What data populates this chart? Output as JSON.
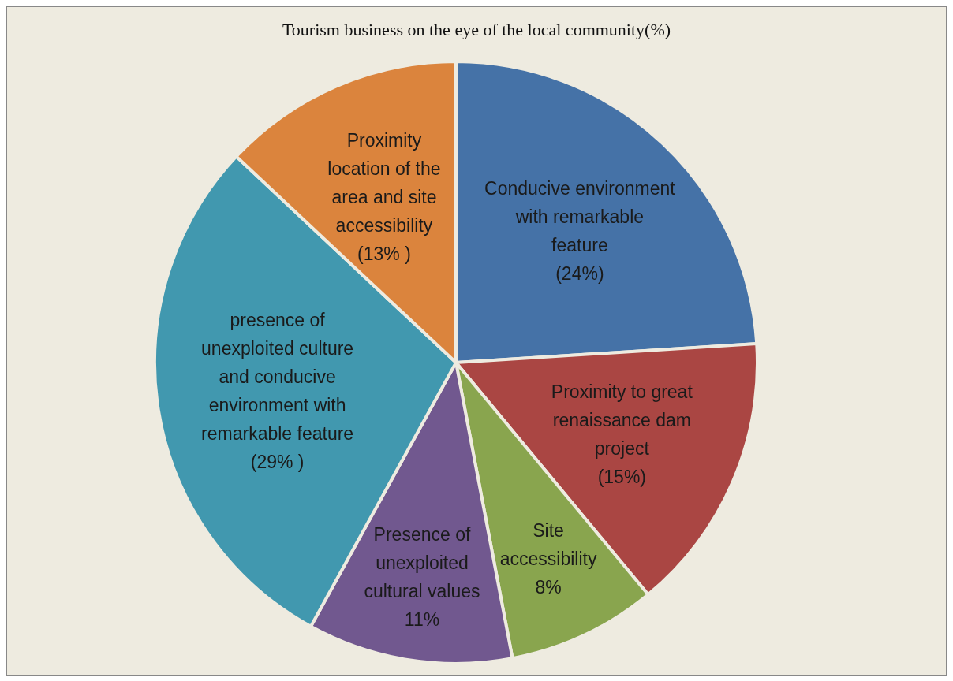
{
  "chart_data": {
    "type": "pie",
    "title": "Tourism business on the eye of the local community(%)",
    "categories": [
      "Conducive environment with remarkable feature",
      "Proximity to great renaissance dam project",
      "Site accessibility",
      "Presence of unexploited cultural values",
      "presence of unexploited culture and conducive environment with remarkable feature",
      "Proximity location of the area and site accessibility"
    ],
    "values": [
      24,
      15,
      8,
      11,
      29,
      13
    ],
    "colors": [
      "#4572a7",
      "#aa4643",
      "#89a54e",
      "#71588f",
      "#4198af",
      "#db843d"
    ],
    "value_labels": [
      "(24%)",
      "(15%)",
      "8%",
      "11%",
      "(29% )",
      "(13% )"
    ]
  }
}
